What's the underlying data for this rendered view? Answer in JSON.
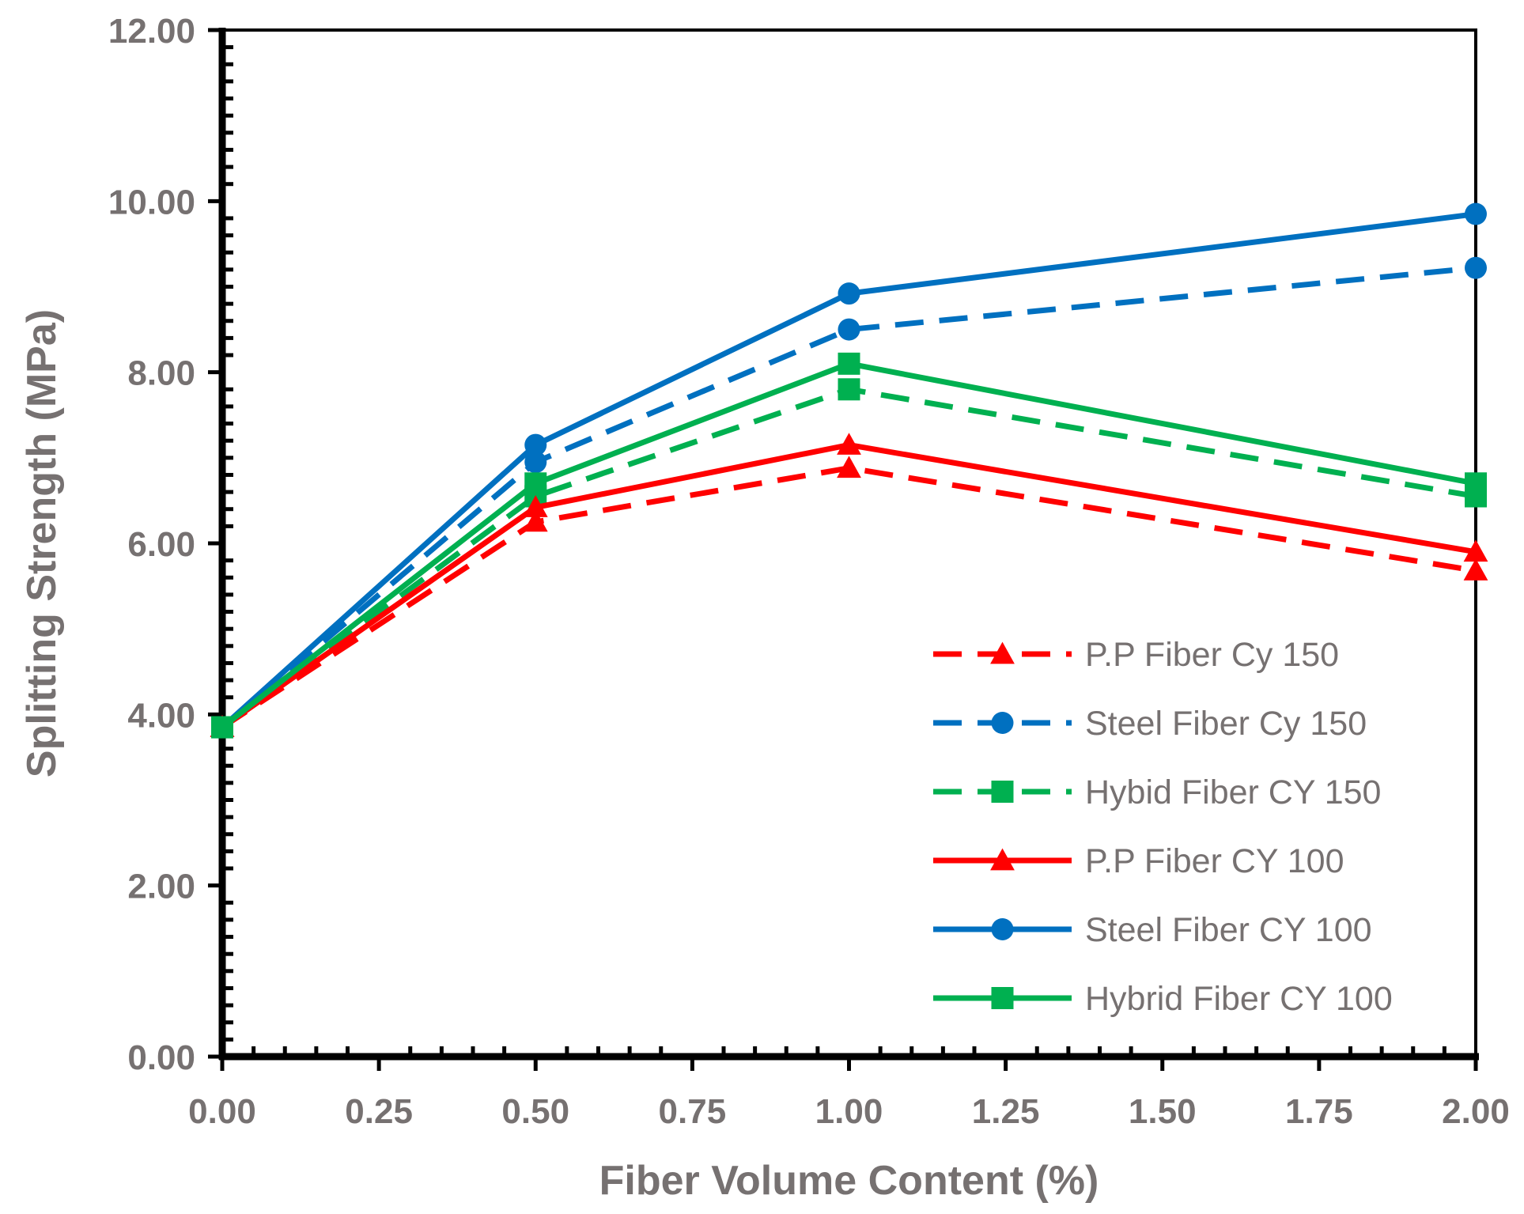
{
  "chart_data": {
    "type": "line",
    "title": "",
    "xlabel": "Fiber Volume Content (%)",
    "ylabel": "Splitting Strength (MPa)",
    "xlim": [
      0,
      2
    ],
    "ylim": [
      0,
      12
    ],
    "x_ticks": [
      "0.00",
      "0.25",
      "0.50",
      "0.75",
      "1.00",
      "1.25",
      "1.50",
      "1.75",
      "2.00"
    ],
    "y_ticks": [
      "0.00",
      "2.00",
      "4.00",
      "6.00",
      "8.00",
      "10.00",
      "12.00"
    ],
    "grid": false,
    "legend_position": "bottom-right",
    "x": [
      0,
      0.5,
      1.0,
      2.0
    ],
    "series": [
      {
        "name": "P.P Fiber Cy 150",
        "color": "#ff0000",
        "dash": "dashed",
        "marker": "triangle",
        "values": [
          3.85,
          6.25,
          6.88,
          5.68
        ]
      },
      {
        "name": "Steel Fiber Cy 150",
        "color": "#0070c0",
        "dash": "dashed",
        "marker": "circle",
        "values": [
          3.85,
          6.95,
          8.5,
          9.22
        ]
      },
      {
        "name": "Hybid Fiber CY 150",
        "color": "#00b050",
        "dash": "dashed",
        "marker": "square",
        "values": [
          3.85,
          6.55,
          7.8,
          6.55
        ]
      },
      {
        "name": "P.P Fiber CY 100",
        "color": "#ff0000",
        "dash": "solid",
        "marker": "triangle",
        "values": [
          3.85,
          6.42,
          7.15,
          5.9
        ]
      },
      {
        "name": "Steel Fiber CY 100",
        "color": "#0070c0",
        "dash": "solid",
        "marker": "circle",
        "values": [
          3.85,
          7.15,
          8.92,
          9.85
        ]
      },
      {
        "name": "Hybrid Fiber CY 100",
        "color": "#00b050",
        "dash": "solid",
        "marker": "square",
        "values": [
          3.85,
          6.7,
          8.1,
          6.7
        ]
      }
    ]
  }
}
